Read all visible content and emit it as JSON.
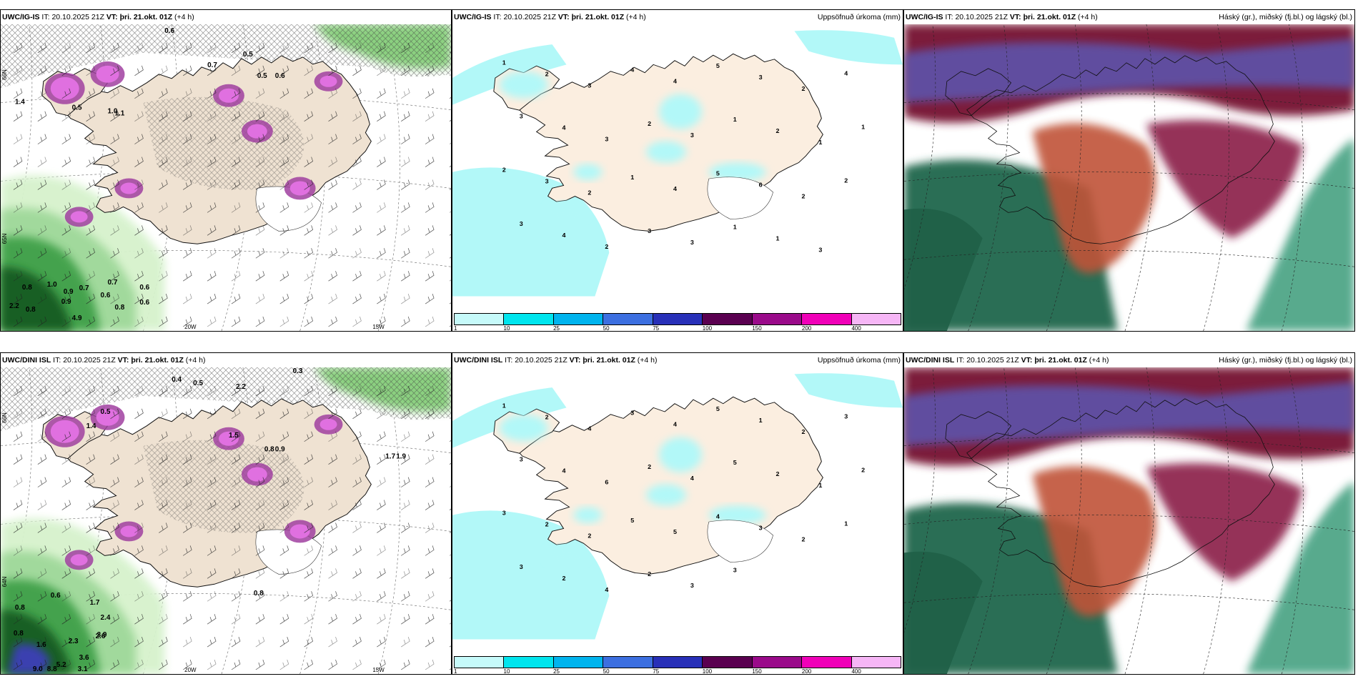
{
  "panels": [
    {
      "id": "ig-is-wind",
      "header": {
        "model": "UWC/IG-IS",
        "it_prefix": "IT:",
        "it": "20.10.2025 21Z",
        "vt_prefix": "VT:",
        "vt": "þri. 21.okt. 01Z",
        "lead": "(+4 h)",
        "right": ""
      },
      "labels": [
        "0.6",
        "0.7",
        "0.5",
        "0.5",
        "0.6",
        "1.4",
        "0.5",
        "1.0",
        "1.1",
        "0.7",
        "0.9",
        "0.6",
        "0.8",
        "0.7",
        "0.9",
        "0.6",
        "0.8",
        "0.6",
        "1.0",
        "4.9",
        "2.2",
        "0.8"
      ],
      "axis": {
        "lon1": "20W",
        "lon2": "15W",
        "lat1": "66N",
        "lat2": "65N"
      }
    },
    {
      "id": "ig-is-precip",
      "header": {
        "model": "UWC/IG-IS",
        "it_prefix": "IT:",
        "it": "20.10.2025 21Z",
        "vt_prefix": "VT:",
        "vt": "þri. 21.okt. 01Z",
        "lead": "(+4 h)",
        "right": "Uppsöfnuð úrkoma (mm)"
      },
      "labels": [
        "1",
        "2",
        "3",
        "4",
        "4",
        "5",
        "3",
        "2",
        "4",
        "3",
        "4",
        "3",
        "2",
        "3",
        "1",
        "2",
        "1",
        "1",
        "2",
        "3",
        "2",
        "1",
        "4",
        "5",
        "6",
        "2",
        "2",
        "3",
        "4",
        "2",
        "3",
        "3",
        "1",
        "1",
        "3"
      ],
      "axis": {}
    },
    {
      "id": "ig-is-cloud",
      "header": {
        "model": "UWC/IG-IS",
        "it_prefix": "IT:",
        "it": "20.10.2025 21Z",
        "vt_prefix": "VT:",
        "vt": "þri. 21.okt. 01Z",
        "lead": "(+4 h)",
        "right": "Háský (gr.), miðský (fj.bl.) og lágský (bl.)"
      },
      "labels": [],
      "axis": {}
    },
    {
      "id": "dini-wind",
      "header": {
        "model": "UWC/DINI ISL",
        "it_prefix": "IT:",
        "it": "20.10.2025 21Z",
        "vt_prefix": "VT:",
        "vt": "þri. 21.okt. 01Z",
        "lead": "(+4 h)",
        "right": ""
      },
      "labels": [
        "0.3",
        "0.4",
        "0.5",
        "2.2",
        "0.5",
        "1.4",
        "0.8",
        "1.7",
        "1.9",
        "0.8",
        "0.9",
        "1.5",
        "0.6",
        "0.8",
        "1.7",
        "2.4",
        "3.9",
        "5.2",
        "8.8",
        "9.0",
        "3.1",
        "3.6",
        "2.6",
        "1.6",
        "0.8",
        "2.3"
      ],
      "axis": {
        "lon1": "20W",
        "lon2": "15W",
        "lat1": "66N",
        "lat2": "64N"
      }
    },
    {
      "id": "dini-precip",
      "header": {
        "model": "UWC/DINI ISL",
        "it_prefix": "IT:",
        "it": "20.10.2025 21Z",
        "vt_prefix": "VT:",
        "vt": "þri. 21.okt. 01Z",
        "lead": "(+4 h)",
        "right": "Uppsöfnuð úrkoma (mm)"
      },
      "labels": [
        "1",
        "2",
        "4",
        "3",
        "4",
        "5",
        "1",
        "2",
        "3",
        "3",
        "4",
        "6",
        "2",
        "4",
        "5",
        "2",
        "1",
        "2",
        "3",
        "2",
        "2",
        "5",
        "5",
        "4",
        "3",
        "2",
        "1",
        "3",
        "2",
        "4",
        "2",
        "3",
        "3"
      ],
      "axis": {}
    },
    {
      "id": "dini-cloud",
      "header": {
        "model": "UWC/DINI ISL",
        "it_prefix": "IT:",
        "it": "20.10.2025 21Z",
        "vt_prefix": "VT:",
        "vt": "þri. 21.okt. 01Z",
        "lead": "(+4 h)",
        "right": "Háský (gr.), miðský (fj.bl.) og lágský (bl.)"
      },
      "labels": [],
      "axis": {}
    }
  ],
  "colorbar": {
    "ticks": [
      "1",
      "10",
      "25",
      "50",
      "75",
      "100",
      "150",
      "200",
      "400"
    ],
    "colors": [
      "#c6fafa",
      "#00e5ee",
      "#00b4ee",
      "#3c6fe0",
      "#2830b8",
      "#5a0050",
      "#9a0a8a",
      "#f000b8",
      "#f6b6f6"
    ]
  }
}
